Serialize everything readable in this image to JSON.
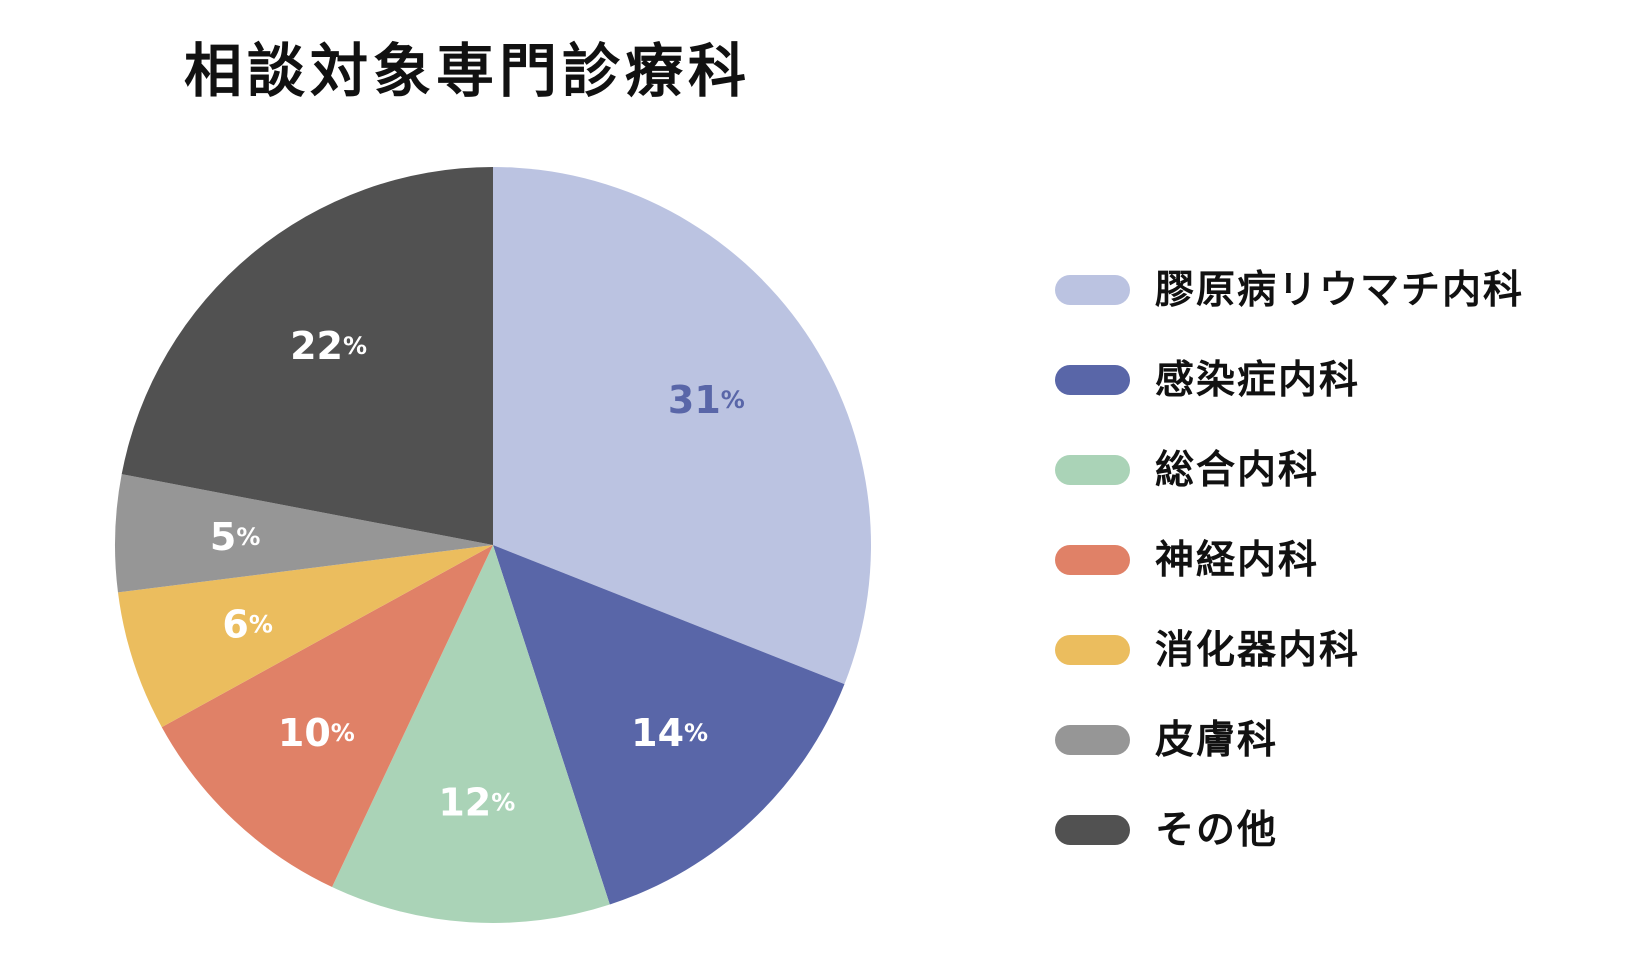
{
  "chart_data": {
    "type": "pie",
    "title": "相談対象専門診療科",
    "unit": "%",
    "categories": [
      "膠原病リウマチ内科",
      "感染症内科",
      "総合内科",
      "神経内科",
      "消化器内科",
      "皮膚科",
      "その他"
    ],
    "values": [
      31,
      14,
      12,
      10,
      6,
      5,
      22
    ],
    "colors": [
      "#bbc3e1",
      "#5966a8",
      "#aad3b7",
      "#e08167",
      "#ebbd5e",
      "#969696",
      "#515151"
    ],
    "label_colors": [
      "#5966a8",
      "#ffffff",
      "#ffffff",
      "#ffffff",
      "#ffffff",
      "#ffffff",
      "#ffffff"
    ],
    "start": "12 o'clock",
    "direction": "clockwise",
    "legend_position": "right"
  }
}
